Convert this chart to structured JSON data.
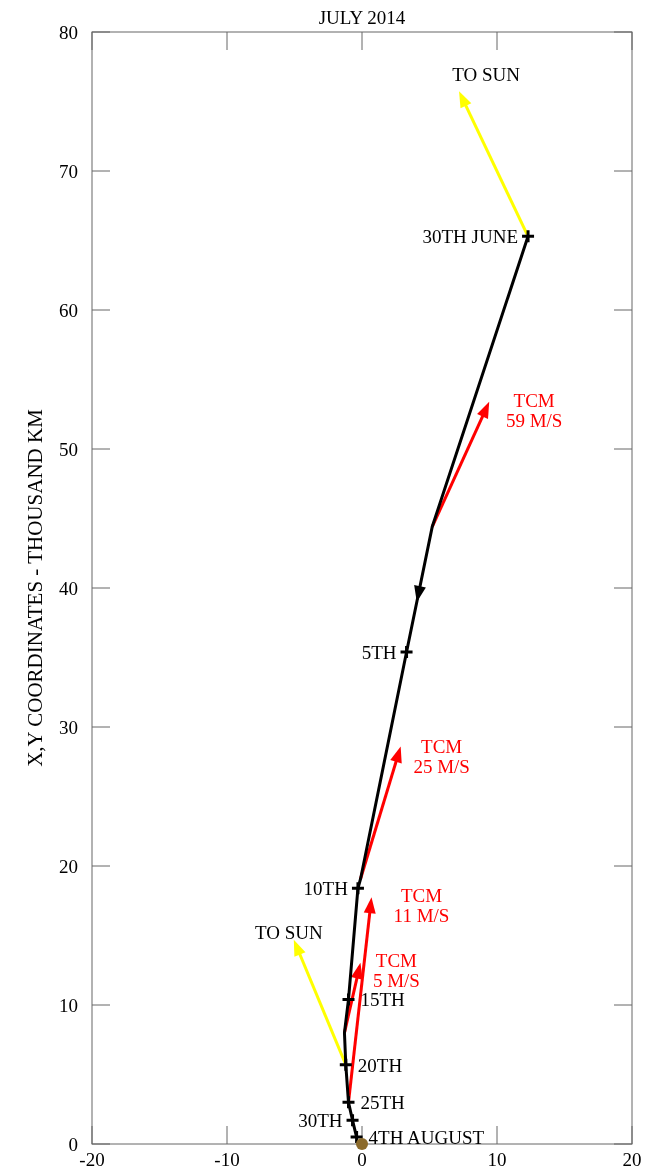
{
  "chart_data": {
    "type": "line",
    "title": "JULY 2014",
    "ylabel": "X,Y COORDINATES - THOUSAND KM",
    "xlim": [
      -20,
      20
    ],
    "xticks": [
      -20,
      -10,
      0,
      10,
      20
    ],
    "ylim": [
      0,
      80
    ],
    "yticks": [
      0,
      10,
      20,
      30,
      40,
      50,
      60,
      70,
      80
    ],
    "marker": "none",
    "series": [
      {
        "color": "#000000",
        "x": [
          12.3,
          5.2,
          3.3,
          -0.1,
          -0.3,
          -1.0,
          -1.3,
          -1.2,
          -1.0,
          -0.7,
          -0.4
        ],
        "values": [
          65.3,
          44.4,
          35.4,
          19.1,
          18.4,
          10.4,
          8.0,
          5.7,
          3.0,
          1.7,
          0.5
        ]
      },
      {
        "type": "scatter",
        "marker": "cross",
        "color": "#000000",
        "x": [
          12.3,
          3.3,
          -0.3,
          -1.0,
          -1.2,
          -1.0,
          -0.7,
          -0.4
        ],
        "values": [
          65.3,
          35.4,
          18.4,
          10.4,
          5.7,
          3.0,
          1.7,
          0.5
        ]
      },
      {
        "type": "scatter",
        "marker": "circle",
        "color": "#8b6a2b",
        "x": [
          0
        ],
        "values": [
          0
        ]
      }
    ],
    "annotations": [
      {
        "text": "30TH JUNE",
        "x": 12.3,
        "y": 65.3
      },
      {
        "text": "5TH",
        "x": 3.3,
        "y": 35.4
      },
      {
        "text": "10TH",
        "x": -0.3,
        "y": 18.4
      },
      {
        "text": "15TH",
        "x": -1.0,
        "y": 10.4
      },
      {
        "text": "20TH",
        "x": -1.2,
        "y": 5.7
      },
      {
        "text": "25TH",
        "x": -1.0,
        "y": 3.0
      },
      {
        "text": "30TH",
        "x": -0.7,
        "y": 1.7
      },
      {
        "text": "4TH AUGUST",
        "x": -0.4,
        "y": 0.5
      },
      {
        "text": "TO SUN",
        "x": 12.3,
        "y": 65.3
      },
      {
        "text": "TCM\n59 M/S",
        "x": 5.2,
        "y": 44.4
      },
      {
        "text": "TCM\n25 M/S",
        "x": -0.1,
        "y": 19.1
      },
      {
        "text": "TCM\n11 M/S",
        "x": -1.0,
        "y": 3.0
      },
      {
        "text": "TCM\n5 M/S",
        "x": -1.3,
        "y": 8.0
      },
      {
        "text": "TO SUN",
        "x": -1.2,
        "y": 5.7
      }
    ]
  }
}
